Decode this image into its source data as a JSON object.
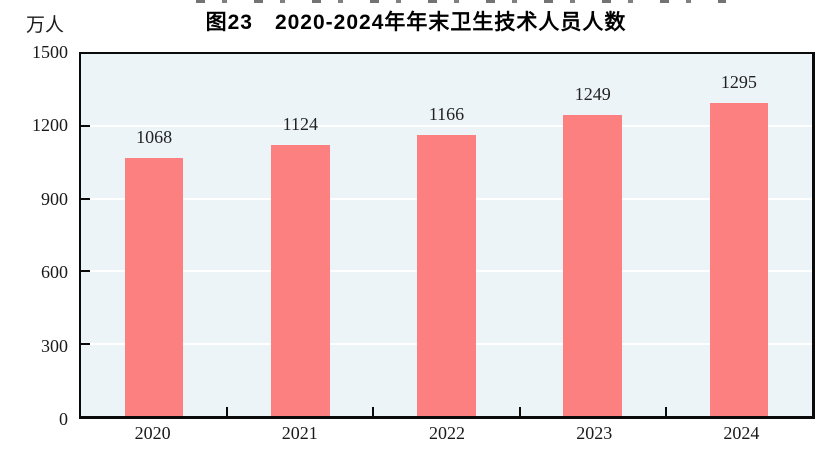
{
  "header": {
    "title": "图23　2020-2024年年末卫生技术人员人数",
    "unit_label": "万人"
  },
  "chart_data": {
    "type": "bar",
    "title": "图23　2020-2024年年末卫生技术人员人数",
    "unit": "万人",
    "categories": [
      "2020",
      "2021",
      "2022",
      "2023",
      "2024"
    ],
    "values": [
      1068,
      1124,
      1166,
      1249,
      1295
    ],
    "value_labels": [
      "1068",
      "1124",
      "1166",
      "1249",
      "1295"
    ],
    "ylim": [
      0,
      1500
    ],
    "yticks": [
      0,
      300,
      600,
      900,
      1200,
      1500
    ],
    "ytick_labels": [
      "0",
      "300",
      "600",
      "900",
      "1200",
      "1500"
    ],
    "xlabel": "",
    "ylabel": "万人",
    "grid": true,
    "legend": "none",
    "colors": {
      "bar": "#FC8080",
      "plot_background": "#EDF4F8",
      "gridline": "#FFFFFF",
      "frame": "#0A0A0A",
      "text": "#1A1A1A"
    }
  }
}
